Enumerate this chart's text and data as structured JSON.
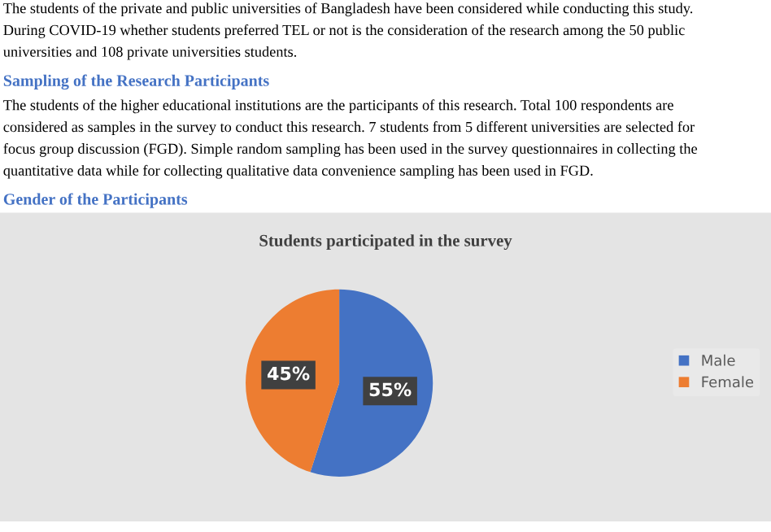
{
  "chart_data": {
    "type": "pie",
    "title": "Students participated in the survey",
    "annotations": [
      "The students of the private and public universities of Bangladesh have been considered while conducting this study.",
      "During COVID-19 whether students preferred TEL or not is the consideration of the research among the 50 public",
      "universities and 108 private universities students.",
      "Sampling of the Research Participants",
      "The students of the higher educational institutions are the participants of this research. Total 100 respondents are",
      "considered as samples in the survey to conduct this research. 7 students from 5 different universities are selected for",
      "focus group discussion (FGD). Simple random sampling has been used in the survey questionnaires in collecting the",
      "quantitative data while for collecting qualitative data convenience sampling has been used in FGD.",
      "Gender of the Participants"
    ],
    "categories": [
      "Male",
      "Female"
    ],
    "values": [
      55,
      45
    ],
    "colors": [
      "#4472c4",
      "#ed7d31"
    ],
    "value_labels": [
      "55%",
      "45%"
    ],
    "legend": "right"
  }
}
